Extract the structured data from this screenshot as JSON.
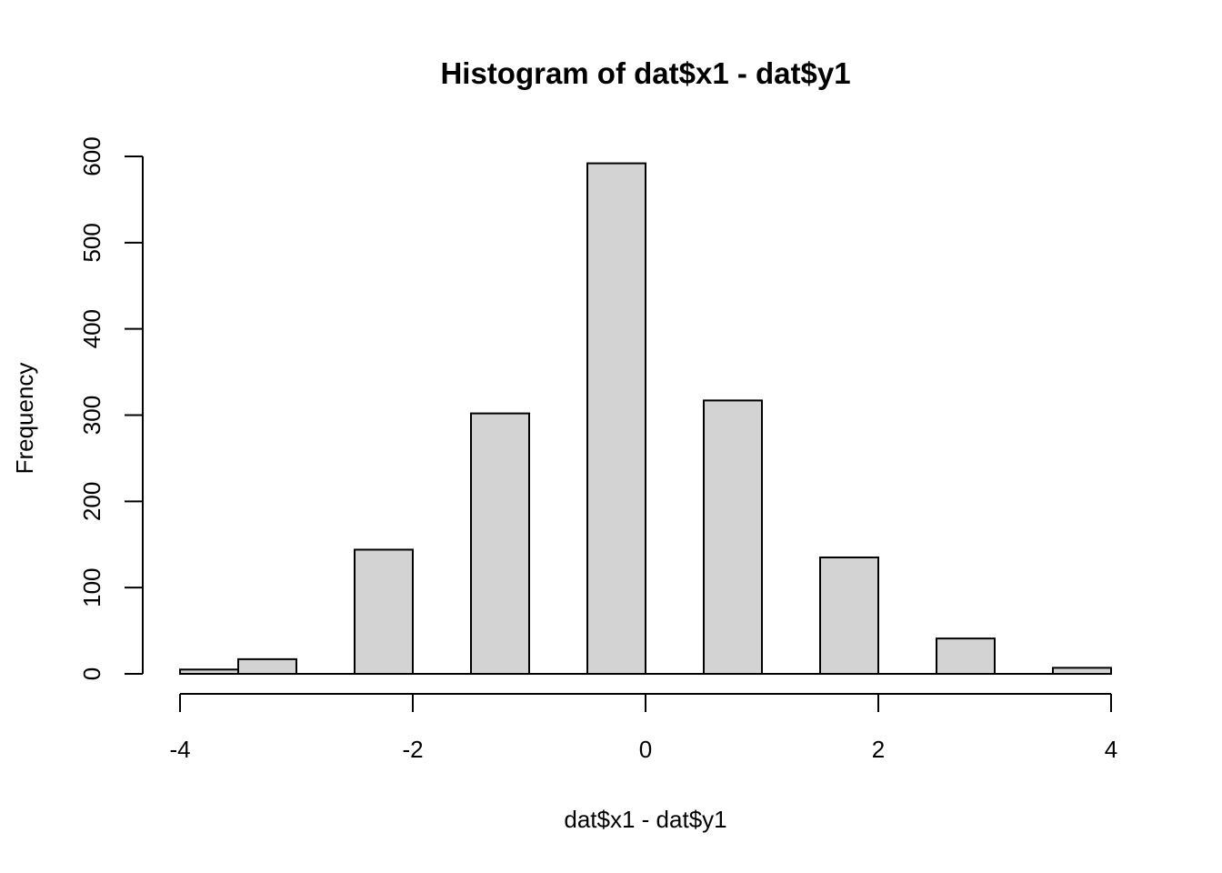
{
  "chart_data": {
    "type": "bar",
    "title": "Histogram of dat$x1 - dat$y1",
    "xlabel": "dat$x1 - dat$y1",
    "ylabel": "Frequency",
    "xlim": [
      -4,
      4
    ],
    "ylim": [
      0,
      600
    ],
    "x_ticks": [
      -4,
      -2,
      0,
      2,
      4
    ],
    "y_ticks": [
      0,
      100,
      200,
      300,
      400,
      500,
      600
    ],
    "bins": [
      {
        "x0": -4.0,
        "x1": -3.5,
        "count": 5
      },
      {
        "x0": -3.5,
        "x1": -3.0,
        "count": 17
      },
      {
        "x0": -2.5,
        "x1": -2.0,
        "count": 144
      },
      {
        "x0": -1.5,
        "x1": -1.0,
        "count": 302
      },
      {
        "x0": -0.5,
        "x1": 0.0,
        "count": 592
      },
      {
        "x0": 0.5,
        "x1": 1.0,
        "count": 317
      },
      {
        "x0": 1.5,
        "x1": 2.0,
        "count": 135
      },
      {
        "x0": 2.5,
        "x1": 3.0,
        "count": 41
      },
      {
        "x0": 3.5,
        "x1": 4.0,
        "count": 7
      }
    ],
    "bar_fill": "#d3d3d3",
    "bar_stroke": "#000000",
    "grid": false,
    "legend": "none"
  }
}
